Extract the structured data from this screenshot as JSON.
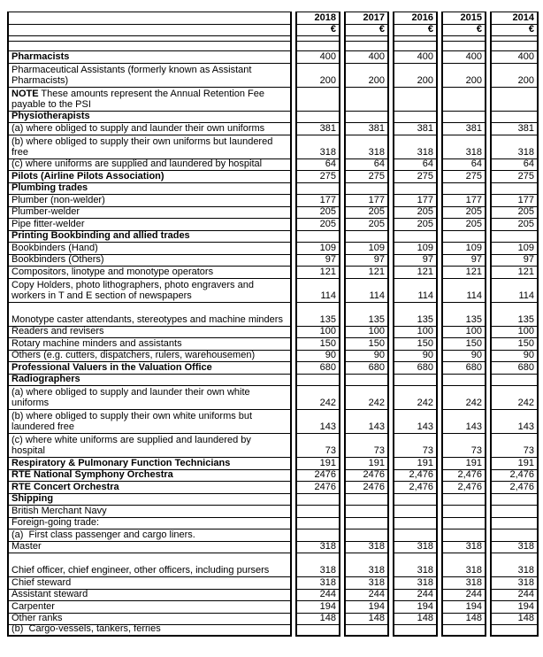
{
  "colors": {
    "background": "#ffffff",
    "border": "#000000",
    "text": "#000000"
  },
  "table": {
    "currency_symbol": "€",
    "years": [
      "2018",
      "2017",
      "2016",
      "2015",
      "2014"
    ],
    "rows": [
      {
        "label": "",
        "h": "s",
        "bold_values": true,
        "values": [
          "2018",
          "2017",
          "2016",
          "2015",
          "2014"
        ]
      },
      {
        "label": "",
        "h": "s",
        "bold_values": true,
        "values": [
          "€",
          "€",
          "€",
          "€",
          "€"
        ]
      },
      {
        "label": "",
        "h": "t",
        "values": [
          "",
          "",
          "",
          "",
          ""
        ]
      },
      {
        "label": "",
        "h": "e",
        "values": [
          "",
          "",
          "",
          "",
          ""
        ]
      },
      {
        "label": "Pharmacists",
        "bold": true,
        "h": "s",
        "values": [
          "400",
          "400",
          "400",
          "400",
          "400"
        ]
      },
      {
        "label": "Pharmaceutical Assistants (formerly known as Assistant\nPharmacists)",
        "h": "d",
        "values": [
          "200",
          "200",
          "200",
          "200",
          "200"
        ]
      },
      {
        "prefix": "NOTE",
        "label": " These amounts represent the Annual Retention Fee\npayable to the PSI",
        "h": "d",
        "values": [
          "",
          "",
          "",
          "",
          ""
        ]
      },
      {
        "label": "Physiotherapists",
        "bold": true,
        "h": "s",
        "values": [
          "",
          "",
          "",
          "",
          ""
        ]
      },
      {
        "label": "(a) where obliged to supply and launder their own uniforms",
        "h": "s",
        "values": [
          "381",
          "381",
          "381",
          "381",
          "381"
        ]
      },
      {
        "label": "(b) where obliged to supply their own uniforms but laundered\nfree",
        "h": "d",
        "values": [
          "318",
          "318",
          "318",
          "318",
          "318"
        ]
      },
      {
        "label": "(c) where uniforms are supplied and laundered by hospital",
        "h": "s",
        "values": [
          "64",
          "64",
          "64",
          "64",
          "64"
        ]
      },
      {
        "label": "Pilots (Airline Pilots Association)",
        "bold": true,
        "h": "s",
        "values": [
          "275",
          "275",
          "275",
          "275",
          "275"
        ]
      },
      {
        "label": "Plumbing trades",
        "bold": true,
        "h": "s",
        "values": [
          "",
          "",
          "",
          "",
          ""
        ]
      },
      {
        "label": "Plumber (non-welder)",
        "h": "s",
        "values": [
          "177",
          "177",
          "177",
          "177",
          "177"
        ]
      },
      {
        "label": "Plumber-welder",
        "h": "s",
        "values": [
          "205",
          "205",
          "205",
          "205",
          "205"
        ]
      },
      {
        "label": "Pipe fitter-welder",
        "h": "s",
        "values": [
          "205",
          "205",
          "205",
          "205",
          "205"
        ]
      },
      {
        "label": "Printing Bookbinding and allied trades",
        "bold": true,
        "h": "s",
        "values": [
          "",
          "",
          "",
          "",
          ""
        ]
      },
      {
        "label": "Bookbinders (Hand)",
        "h": "s",
        "values": [
          "109",
          "109",
          "109",
          "109",
          "109"
        ]
      },
      {
        "label": "Bookbinders (Others)",
        "h": "s",
        "values": [
          "97",
          "97",
          "97",
          "97",
          "97"
        ]
      },
      {
        "label": "Compositors, linotype and monotype operators",
        "h": "s",
        "values": [
          "121",
          "121",
          "121",
          "121",
          "121"
        ]
      },
      {
        "label": "Copy Holders, photo lithographers, photo engravers and\nworkers in T and E section of newspapers",
        "h": "d",
        "values": [
          "114",
          "114",
          "114",
          "114",
          "114"
        ]
      },
      {
        "label": "Monotype caster attendants, stereotypes and machine minders",
        "h": "d",
        "values": [
          "135",
          "135",
          "135",
          "135",
          "135"
        ]
      },
      {
        "label": "Readers and revisers",
        "h": "s",
        "values": [
          "100",
          "100",
          "100",
          "100",
          "100"
        ]
      },
      {
        "label": "Rotary machine minders and assistants",
        "h": "s",
        "values": [
          "150",
          "150",
          "150",
          "150",
          "150"
        ]
      },
      {
        "label": "Others (e.g. cutters, dispatchers, rulers, warehousemen)",
        "h": "s",
        "values": [
          "90",
          "90",
          "90",
          "90",
          "90"
        ]
      },
      {
        "label": "Professional Valuers in the Valuation Office",
        "bold": true,
        "h": "s",
        "values": [
          "680",
          "680",
          "680",
          "680",
          "680"
        ]
      },
      {
        "label": "Radiographers",
        "bold": true,
        "h": "s",
        "values": [
          "",
          "",
          "",
          "",
          ""
        ]
      },
      {
        "label": "(a) where obliged to supply and launder their own white\nuniforms",
        "h": "d",
        "values": [
          "242",
          "242",
          "242",
          "242",
          "242"
        ]
      },
      {
        "label": "(b) where obliged to supply their own white uniforms but\nlaundered free",
        "h": "d",
        "values": [
          "143",
          "143",
          "143",
          "143",
          "143"
        ]
      },
      {
        "label": "(c) where white uniforms are supplied and laundered by\nhospital",
        "h": "d",
        "values": [
          "73",
          "73",
          "73",
          "73",
          "73"
        ]
      },
      {
        "label": "Respiratory & Pulmonary Function Technicians",
        "bold": true,
        "h": "s",
        "values": [
          "191",
          "191",
          "191",
          "191",
          "191"
        ]
      },
      {
        "label": "RTE National Symphony Orchestra",
        "bold": true,
        "h": "s",
        "values": [
          "2476",
          "2476",
          "2,476",
          "2,476",
          "2,476"
        ]
      },
      {
        "label": "RTE Concert Orchestra",
        "bold": true,
        "h": "s",
        "values": [
          "2476",
          "2476",
          "2,476",
          "2,476",
          "2,476"
        ]
      },
      {
        "label": "Shipping",
        "bold": true,
        "h": "s",
        "values": [
          "",
          "",
          "",
          "",
          ""
        ]
      },
      {
        "label": "British Merchant Navy",
        "h": "s",
        "values": [
          "",
          "",
          "",
          "",
          ""
        ]
      },
      {
        "label": "Foreign-going trade:",
        "h": "s",
        "values": [
          "",
          "",
          "",
          "",
          ""
        ]
      },
      {
        "label": "(a)  First class passenger and cargo liners.",
        "h": "s",
        "values": [
          "",
          "",
          "",
          "",
          ""
        ]
      },
      {
        "label": "Master",
        "h": "s",
        "values": [
          "318",
          "318",
          "318",
          "318",
          "318"
        ]
      },
      {
        "label": "Chief officer, chief engineer, other officers, including pursers",
        "h": "d",
        "values": [
          "318",
          "318",
          "318",
          "318",
          "318"
        ]
      },
      {
        "label": "Chief steward",
        "h": "s",
        "values": [
          "318",
          "318",
          "318",
          "318",
          "318"
        ]
      },
      {
        "label": "Assistant steward",
        "h": "s",
        "values": [
          "244",
          "244",
          "244",
          "244",
          "244"
        ]
      },
      {
        "label": "Carpenter",
        "h": "s",
        "values": [
          "194",
          "194",
          "194",
          "194",
          "194"
        ]
      },
      {
        "label": "Other ranks",
        "h": "s",
        "values": [
          "148",
          "148",
          "148",
          "148",
          "148"
        ]
      },
      {
        "label": "(b)  Cargo-vessels, tankers, ferries",
        "h": "s",
        "values": [
          "",
          "",
          "",
          "",
          ""
        ]
      }
    ]
  }
}
